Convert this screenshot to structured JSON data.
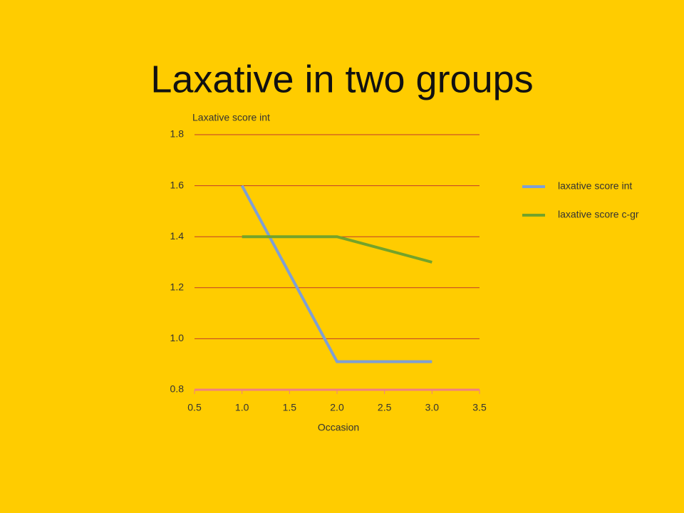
{
  "chart_data": {
    "type": "line",
    "title": "Laxative in two groups",
    "y_label": "Laxative score int",
    "x_label": "Occasion",
    "x": [
      1,
      2,
      3
    ],
    "series": [
      {
        "name": "laxative score int",
        "color": "#7f9fd4",
        "values": [
          1.6,
          0.91,
          0.91
        ]
      },
      {
        "name": "laxative score c-gr",
        "color": "#74a32a",
        "values": [
          1.4,
          1.4,
          1.3
        ]
      }
    ],
    "xlim": [
      0.5,
      3.5
    ],
    "xticks": [
      0.5,
      {
        "value": 1,
        "label": "1.0"
      },
      1.5,
      {
        "value": 2,
        "label": "2.0"
      },
      2.5,
      {
        "value": 3,
        "label": "3.0"
      },
      3.5
    ],
    "ylim": [
      0.8,
      1.8
    ],
    "yticks": [
      {
        "value": 0.8,
        "label": "0.8"
      },
      {
        "value": 1,
        "label": "1.0"
      },
      1.2,
      1.4,
      1.6,
      1.8
    ],
    "grid": true,
    "legend": "right"
  }
}
